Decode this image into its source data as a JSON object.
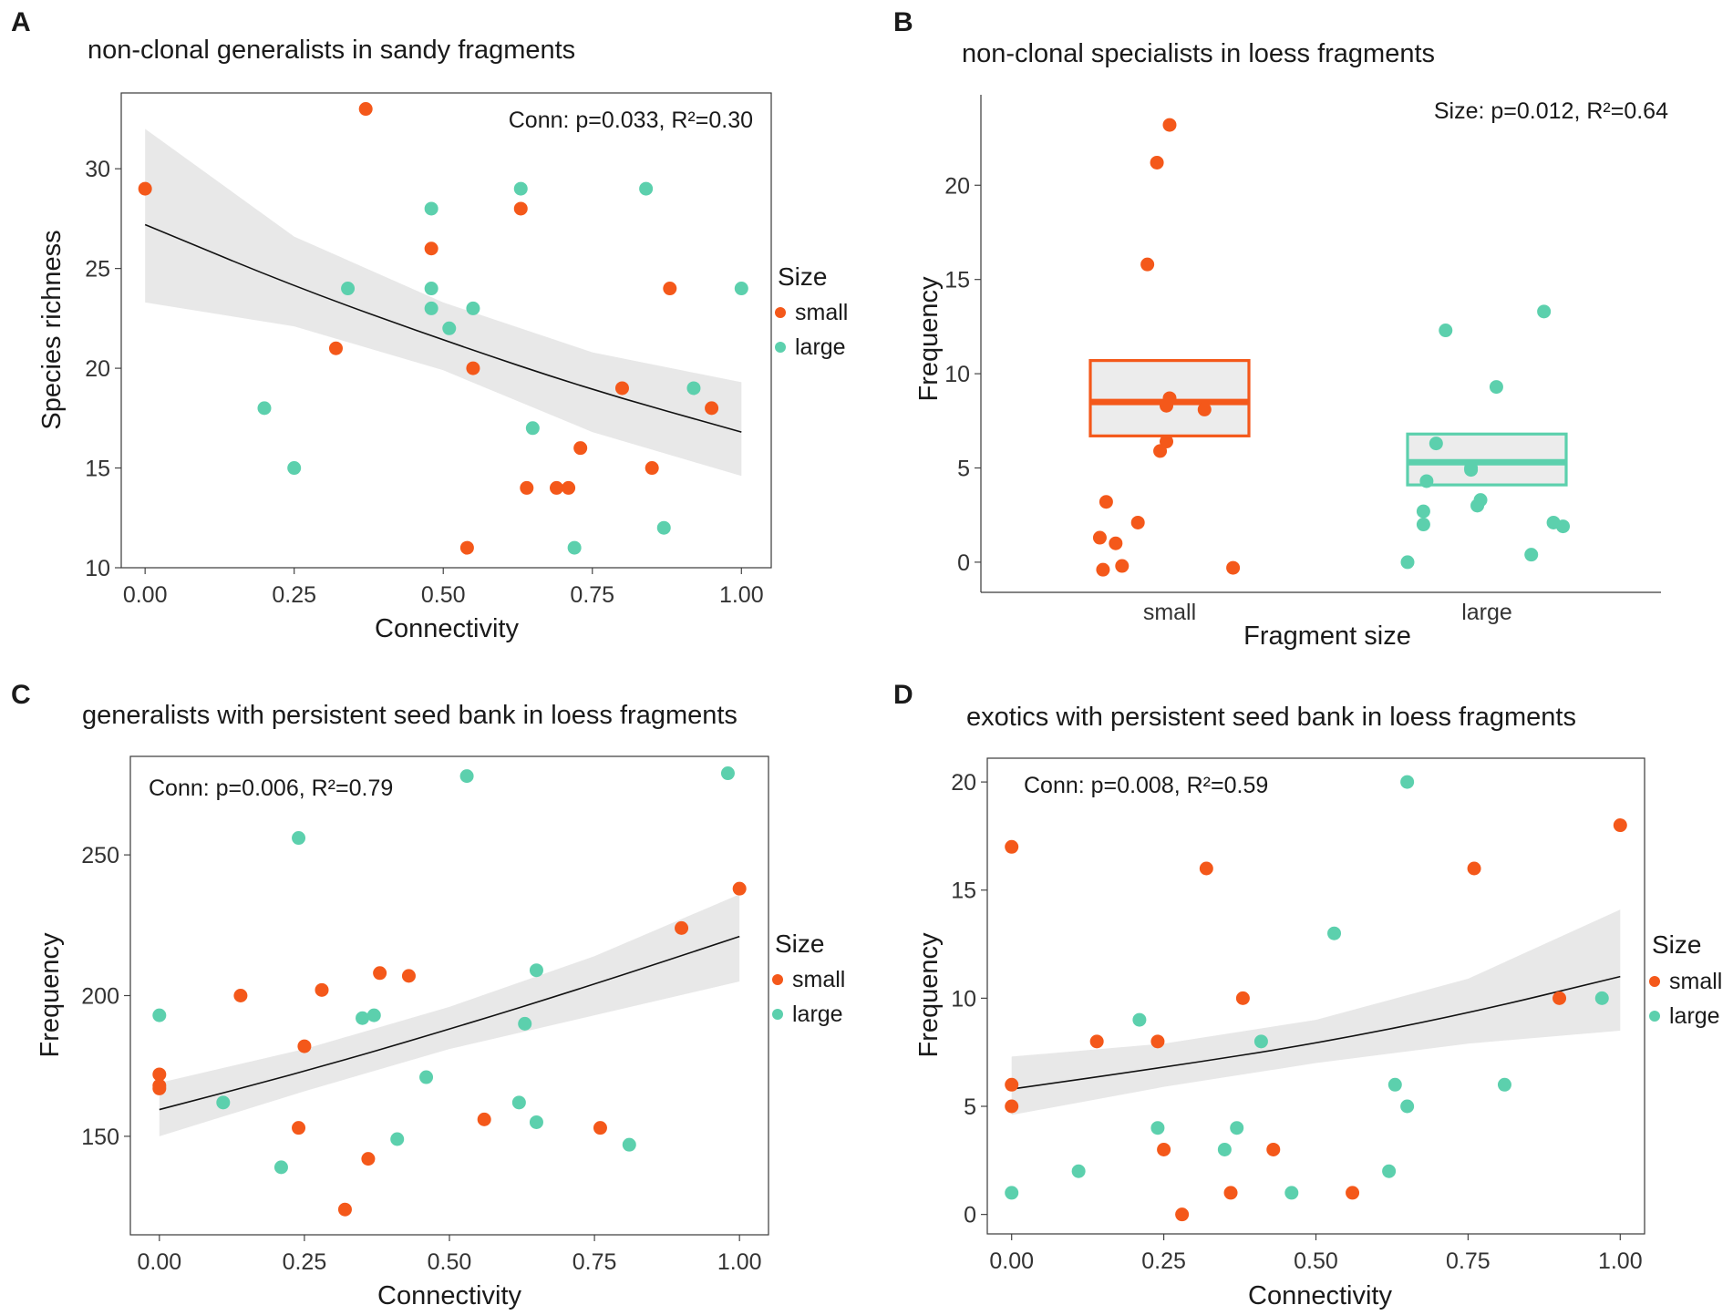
{
  "colors": {
    "small": "#f4581a",
    "large": "#5cd0ad",
    "band": "#e8e8e8",
    "line": "#111111"
  },
  "legend": {
    "title": "Size",
    "small": "small",
    "large": "large"
  },
  "chart_data": [
    {
      "panel": "A",
      "title": "non-clonal generalists in sandy fragments",
      "type": "scatter",
      "xlabel": "Connectivity",
      "ylabel": "Species richness",
      "xlim": [
        -0.04,
        1.05
      ],
      "ylim": [
        10,
        33.8
      ],
      "xticks": [
        0,
        0.25,
        0.5,
        0.75,
        1
      ],
      "xtick_labels": [
        "0.00",
        "0.25",
        "0.50",
        "0.75",
        "1.00"
      ],
      "yticks": [
        10,
        15,
        20,
        25,
        30
      ],
      "ytick_labels": [
        "10",
        "15",
        "20",
        "25",
        "30"
      ],
      "stat_text": "Conn: p=0.033, R²=0.30",
      "stat_pos": "top-right",
      "fit": {
        "x": [
          0,
          0.25,
          0.5,
          0.75,
          1
        ],
        "y": [
          27.2,
          24.1,
          21.4,
          18.9,
          16.8
        ],
        "lo": [
          23.3,
          22.1,
          19.9,
          16.8,
          14.6
        ],
        "hi": [
          32.0,
          26.6,
          23.3,
          20.8,
          19.3
        ]
      },
      "series": [
        {
          "name": "small",
          "points": [
            [
              0,
              29
            ],
            [
              0.37,
              33
            ],
            [
              0.32,
              21
            ],
            [
              0.48,
              26
            ],
            [
              0.55,
              20
            ],
            [
              0.63,
              28
            ],
            [
              0.54,
              11
            ],
            [
              0.64,
              14
            ],
            [
              0.69,
              14
            ],
            [
              0.71,
              14
            ],
            [
              0.73,
              16
            ],
            [
              0.8,
              19
            ],
            [
              0.85,
              15
            ],
            [
              0.88,
              24
            ],
            [
              0.95,
              18
            ]
          ]
        },
        {
          "name": "large",
          "points": [
            [
              0.2,
              18
            ],
            [
              0.25,
              15
            ],
            [
              0.34,
              24
            ],
            [
              0.48,
              28
            ],
            [
              0.48,
              24
            ],
            [
              0.48,
              23
            ],
            [
              0.51,
              22
            ],
            [
              0.55,
              23
            ],
            [
              0.63,
              29
            ],
            [
              0.65,
              17
            ],
            [
              0.72,
              11
            ],
            [
              0.84,
              29
            ],
            [
              0.87,
              12
            ],
            [
              0.92,
              19
            ],
            [
              1.0,
              24
            ]
          ]
        }
      ],
      "legend_pos": "right"
    },
    {
      "panel": "B",
      "title": "non-clonal specialists in loess fragments",
      "type": "box-jitter",
      "xlabel": "Fragment size",
      "ylabel": "Frequency",
      "categories": [
        "small",
        "large"
      ],
      "ylim": [
        -1.6,
        24.8
      ],
      "yticks": [
        0,
        5,
        10,
        15,
        20
      ],
      "ytick_labels": [
        "0",
        "5",
        "10",
        "15",
        "20"
      ],
      "stat_text": "Size: p=0.012, R²=0.64",
      "stat_pos": "top-right",
      "boxes": [
        {
          "category": "small",
          "low": 6.7,
          "mid": 8.5,
          "high": 10.7
        },
        {
          "category": "large",
          "low": 4.1,
          "mid": 5.3,
          "high": 6.8
        }
      ],
      "series": [
        {
          "name": "small",
          "points": [
            [
              -0.21,
              -0.4
            ],
            [
              -0.22,
              1.3
            ],
            [
              -0.17,
              1.0
            ],
            [
              -0.2,
              3.2
            ],
            [
              -0.1,
              2.1
            ],
            [
              -0.15,
              -0.2
            ],
            [
              0.0,
              23.2
            ],
            [
              -0.04,
              21.2
            ],
            [
              -0.07,
              15.8
            ],
            [
              0.0,
              8.7
            ],
            [
              -0.01,
              8.3
            ],
            [
              0.11,
              8.1
            ],
            [
              -0.01,
              6.4
            ],
            [
              -0.03,
              5.9
            ],
            [
              0.2,
              -0.3
            ]
          ]
        },
        {
          "name": "large",
          "points": [
            [
              -0.25,
              0.0
            ],
            [
              -0.13,
              12.3
            ],
            [
              0.18,
              13.3
            ],
            [
              0.03,
              9.3
            ],
            [
              -0.16,
              6.3
            ],
            [
              -0.19,
              4.3
            ],
            [
              -0.05,
              4.9
            ],
            [
              -0.05,
              5.0
            ],
            [
              -0.2,
              2.7
            ],
            [
              -0.2,
              2.0
            ],
            [
              -0.02,
              3.3
            ],
            [
              -0.03,
              3.0
            ],
            [
              0.14,
              0.4
            ],
            [
              0.21,
              2.1
            ],
            [
              0.24,
              1.9
            ]
          ]
        }
      ]
    },
    {
      "panel": "C",
      "title": "generalists with persistent seed bank in loess fragments",
      "type": "scatter",
      "xlabel": "Connectivity",
      "ylabel": "Frequency",
      "xlim": [
        -0.05,
        1.05
      ],
      "ylim": [
        115,
        285
      ],
      "xticks": [
        0,
        0.25,
        0.5,
        0.75,
        1
      ],
      "xtick_labels": [
        "0.00",
        "0.25",
        "0.50",
        "0.75",
        "1.00"
      ],
      "yticks": [
        150,
        200,
        250
      ],
      "ytick_labels": [
        "150",
        "200",
        "250"
      ],
      "stat_text": "Conn: p=0.006, R²=0.79",
      "stat_pos": "top-left",
      "fit": {
        "x": [
          0,
          0.25,
          0.5,
          0.75,
          1
        ],
        "y": [
          159.5,
          173,
          188,
          204,
          221
        ],
        "lo": [
          150,
          166,
          181,
          193,
          205
        ],
        "hi": [
          169,
          181,
          196,
          214,
          236
        ]
      },
      "series": [
        {
          "name": "small",
          "points": [
            [
              0,
              172
            ],
            [
              0,
              168
            ],
            [
              0,
              167
            ],
            [
              0.14,
              200
            ],
            [
              0.24,
              153
            ],
            [
              0.25,
              182
            ],
            [
              0.28,
              202
            ],
            [
              0.32,
              124
            ],
            [
              0.36,
              142
            ],
            [
              0.38,
              208
            ],
            [
              0.43,
              207
            ],
            [
              0.56,
              156
            ],
            [
              0.76,
              153
            ],
            [
              0.9,
              224
            ],
            [
              1.0,
              238
            ]
          ]
        },
        {
          "name": "large",
          "points": [
            [
              0,
              193
            ],
            [
              0.11,
              162
            ],
            [
              0.21,
              139
            ],
            [
              0.24,
              256
            ],
            [
              0.35,
              192
            ],
            [
              0.37,
              193
            ],
            [
              0.41,
              149
            ],
            [
              0.46,
              171
            ],
            [
              0.53,
              278
            ],
            [
              0.62,
              162
            ],
            [
              0.63,
              190
            ],
            [
              0.65,
              209
            ],
            [
              0.65,
              155
            ],
            [
              0.81,
              147
            ],
            [
              0.98,
              279
            ]
          ]
        }
      ],
      "legend_pos": "right"
    },
    {
      "panel": "D",
      "title": "exotics with persistent seed bank in loess fragments",
      "type": "scatter",
      "xlabel": "Connectivity",
      "ylabel": "Frequency",
      "xlim": [
        -0.04,
        1.04
      ],
      "ylim": [
        -0.9,
        21.1
      ],
      "xticks": [
        0,
        0.25,
        0.5,
        0.75,
        1
      ],
      "xtick_labels": [
        "0.00",
        "0.25",
        "0.50",
        "0.75",
        "1.00"
      ],
      "yticks": [
        0,
        5,
        10,
        15,
        20
      ],
      "ytick_labels": [
        "0",
        "5",
        "10",
        "15",
        "20"
      ],
      "stat_text": "Conn: p=0.008, R²=0.59",
      "stat_pos": "top-left",
      "fit": {
        "x": [
          0,
          0.25,
          0.5,
          0.75,
          1
        ],
        "y": [
          5.8,
          6.8,
          7.9,
          9.3,
          11.0
        ],
        "lo": [
          4.6,
          5.9,
          7.0,
          7.9,
          8.5
        ],
        "hi": [
          7.3,
          7.9,
          9.0,
          10.9,
          14.1
        ]
      },
      "series": [
        {
          "name": "small",
          "points": [
            [
              0,
              17
            ],
            [
              0,
              6
            ],
            [
              0,
              5
            ],
            [
              0.14,
              8
            ],
            [
              0.24,
              8
            ],
            [
              0.25,
              3
            ],
            [
              0.28,
              0
            ],
            [
              0.32,
              16
            ],
            [
              0.36,
              1
            ],
            [
              0.38,
              10
            ],
            [
              0.43,
              3
            ],
            [
              0.56,
              1
            ],
            [
              0.76,
              16
            ],
            [
              0.9,
              10
            ],
            [
              1.0,
              18
            ]
          ]
        },
        {
          "name": "large",
          "points": [
            [
              0,
              1
            ],
            [
              0.11,
              2
            ],
            [
              0.21,
              9
            ],
            [
              0.24,
              4
            ],
            [
              0.35,
              3
            ],
            [
              0.37,
              4
            ],
            [
              0.41,
              8
            ],
            [
              0.46,
              1
            ],
            [
              0.53,
              13
            ],
            [
              0.62,
              2
            ],
            [
              0.63,
              6
            ],
            [
              0.65,
              20
            ],
            [
              0.65,
              5
            ],
            [
              0.81,
              6
            ],
            [
              0.97,
              10
            ]
          ]
        }
      ],
      "legend_pos": "right"
    }
  ]
}
